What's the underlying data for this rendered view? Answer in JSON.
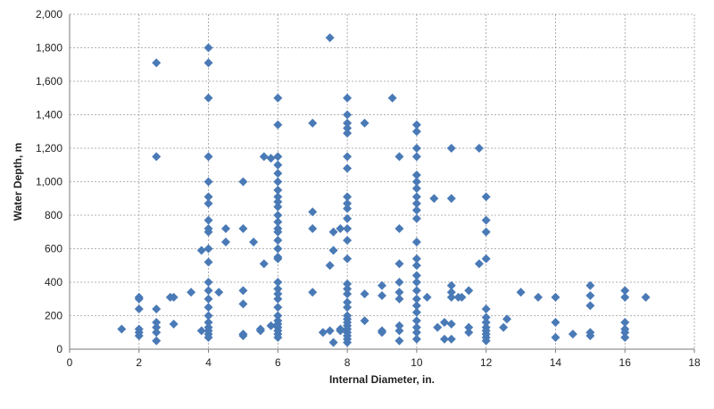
{
  "chart_data": {
    "type": "scatter",
    "title": "",
    "xlabel": "Internal Diameter, in.",
    "ylabel": "Water Depth, m",
    "xlim": [
      0,
      18
    ],
    "ylim": [
      0,
      2000
    ],
    "xticks": [
      0,
      2,
      4,
      6,
      8,
      10,
      12,
      14,
      16,
      18
    ],
    "yticks": [
      0,
      200,
      400,
      600,
      800,
      1000,
      1200,
      1400,
      1600,
      1800,
      2000
    ],
    "xtick_labels": [
      "0",
      "2",
      "4",
      "6",
      "8",
      "10",
      "12",
      "14",
      "16",
      "18"
    ],
    "ytick_labels": [
      "0",
      "200",
      "400",
      "600",
      "800",
      "1,000",
      "1,200",
      "1,400",
      "1,600",
      "1,800",
      "2,000"
    ],
    "grid": true,
    "legend": "none",
    "marker": "diamond",
    "marker_color": "#4a7ab6",
    "series": [
      {
        "points": [
          [
            1.5,
            120
          ],
          [
            2,
            310
          ],
          [
            2,
            300
          ],
          [
            2,
            240
          ],
          [
            2,
            120
          ],
          [
            2,
            100
          ],
          [
            2,
            80
          ],
          [
            2.5,
            1710
          ],
          [
            2.5,
            1150
          ],
          [
            2.5,
            240
          ],
          [
            2.5,
            160
          ],
          [
            2.5,
            130
          ],
          [
            2.5,
            100
          ],
          [
            2.5,
            50
          ],
          [
            2.9,
            310
          ],
          [
            3,
            310
          ],
          [
            3,
            150
          ],
          [
            3.5,
            340
          ],
          [
            3.8,
            590
          ],
          [
            3.8,
            110
          ],
          [
            4,
            1800
          ],
          [
            4,
            1710
          ],
          [
            4,
            1500
          ],
          [
            4,
            1150
          ],
          [
            4,
            1000
          ],
          [
            4,
            910
          ],
          [
            4,
            870
          ],
          [
            4,
            770
          ],
          [
            4,
            720
          ],
          [
            4,
            700
          ],
          [
            4,
            600
          ],
          [
            4,
            520
          ],
          [
            4,
            400
          ],
          [
            4,
            350
          ],
          [
            4,
            300
          ],
          [
            4,
            250
          ],
          [
            4,
            200
          ],
          [
            4,
            160
          ],
          [
            4,
            130
          ],
          [
            4,
            110
          ],
          [
            4,
            90
          ],
          [
            4,
            70
          ],
          [
            4.3,
            340
          ],
          [
            4.5,
            720
          ],
          [
            4.5,
            640
          ],
          [
            5,
            1000
          ],
          [
            5,
            720
          ],
          [
            5,
            350
          ],
          [
            5,
            270
          ],
          [
            5,
            90
          ],
          [
            5,
            80
          ],
          [
            5.3,
            640
          ],
          [
            5.5,
            110
          ],
          [
            5.5,
            120
          ],
          [
            5.6,
            1150
          ],
          [
            5.6,
            510
          ],
          [
            5.8,
            1140
          ],
          [
            5.8,
            140
          ],
          [
            6,
            1500
          ],
          [
            6,
            1340
          ],
          [
            6,
            1150
          ],
          [
            6,
            1100
          ],
          [
            6,
            1050
          ],
          [
            6,
            1000
          ],
          [
            6,
            950
          ],
          [
            6,
            910
          ],
          [
            6,
            880
          ],
          [
            6,
            850
          ],
          [
            6,
            800
          ],
          [
            6,
            760
          ],
          [
            6,
            720
          ],
          [
            6,
            700
          ],
          [
            6,
            650
          ],
          [
            6,
            600
          ],
          [
            6,
            550
          ],
          [
            6,
            540
          ],
          [
            6,
            400
          ],
          [
            6,
            360
          ],
          [
            6,
            330
          ],
          [
            6,
            300
          ],
          [
            6,
            250
          ],
          [
            6,
            200
          ],
          [
            6,
            170
          ],
          [
            6,
            150
          ],
          [
            6,
            130
          ],
          [
            6,
            110
          ],
          [
            6,
            90
          ],
          [
            6,
            70
          ],
          [
            7,
            1350
          ],
          [
            7,
            820
          ],
          [
            7,
            720
          ],
          [
            7,
            340
          ],
          [
            7.3,
            100
          ],
          [
            7.5,
            1860
          ],
          [
            7.5,
            500
          ],
          [
            7.5,
            110
          ],
          [
            7.6,
            700
          ],
          [
            7.6,
            590
          ],
          [
            7.6,
            40
          ],
          [
            7.8,
            720
          ],
          [
            7.8,
            110
          ],
          [
            7.8,
            120
          ],
          [
            8,
            1500
          ],
          [
            8,
            1400
          ],
          [
            8,
            1350
          ],
          [
            8,
            1320
          ],
          [
            8,
            1290
          ],
          [
            8,
            1150
          ],
          [
            8,
            1080
          ],
          [
            8,
            910
          ],
          [
            8,
            870
          ],
          [
            8,
            840
          ],
          [
            8,
            780
          ],
          [
            8,
            720
          ],
          [
            8,
            650
          ],
          [
            8,
            540
          ],
          [
            8,
            390
          ],
          [
            8,
            360
          ],
          [
            8,
            330
          ],
          [
            8,
            280
          ],
          [
            8,
            250
          ],
          [
            8,
            200
          ],
          [
            8,
            180
          ],
          [
            8,
            160
          ],
          [
            8,
            140
          ],
          [
            8,
            120
          ],
          [
            8,
            100
          ],
          [
            8,
            80
          ],
          [
            8,
            60
          ],
          [
            8,
            40
          ],
          [
            8.5,
            1350
          ],
          [
            8.5,
            330
          ],
          [
            8.5,
            170
          ],
          [
            9,
            380
          ],
          [
            9,
            320
          ],
          [
            9,
            110
          ],
          [
            9,
            100
          ],
          [
            9.3,
            1500
          ],
          [
            9.5,
            1150
          ],
          [
            9.5,
            720
          ],
          [
            9.5,
            510
          ],
          [
            9.5,
            400
          ],
          [
            9.5,
            340
          ],
          [
            9.5,
            300
          ],
          [
            9.5,
            140
          ],
          [
            9.5,
            110
          ],
          [
            9.5,
            50
          ],
          [
            10,
            1340
          ],
          [
            10,
            1300
          ],
          [
            10,
            1200
          ],
          [
            10,
            1150
          ],
          [
            10,
            1040
          ],
          [
            10,
            1000
          ],
          [
            10,
            960
          ],
          [
            10,
            910
          ],
          [
            10,
            870
          ],
          [
            10,
            830
          ],
          [
            10,
            780
          ],
          [
            10,
            640
          ],
          [
            10,
            540
          ],
          [
            10,
            500
          ],
          [
            10,
            440
          ],
          [
            10,
            400
          ],
          [
            10,
            350
          ],
          [
            10,
            300
          ],
          [
            10,
            260
          ],
          [
            10,
            220
          ],
          [
            10,
            170
          ],
          [
            10,
            130
          ],
          [
            10,
            100
          ],
          [
            10,
            60
          ],
          [
            10.3,
            310
          ],
          [
            10.5,
            900
          ],
          [
            10.6,
            130
          ],
          [
            10.8,
            160
          ],
          [
            10.8,
            60
          ],
          [
            11,
            1200
          ],
          [
            11,
            900
          ],
          [
            11,
            380
          ],
          [
            11,
            340
          ],
          [
            11,
            310
          ],
          [
            11,
            150
          ],
          [
            11,
            60
          ],
          [
            11.2,
            310
          ],
          [
            11.3,
            310
          ],
          [
            11.5,
            350
          ],
          [
            11.5,
            130
          ],
          [
            11.5,
            100
          ],
          [
            11.8,
            1200
          ],
          [
            11.8,
            510
          ],
          [
            12,
            910
          ],
          [
            12,
            770
          ],
          [
            12,
            700
          ],
          [
            12,
            540
          ],
          [
            12,
            240
          ],
          [
            12,
            190
          ],
          [
            12,
            160
          ],
          [
            12,
            130
          ],
          [
            12,
            110
          ],
          [
            12,
            90
          ],
          [
            12,
            70
          ],
          [
            12,
            50
          ],
          [
            12.5,
            130
          ],
          [
            12.6,
            180
          ],
          [
            13,
            340
          ],
          [
            13.5,
            310
          ],
          [
            14,
            310
          ],
          [
            14,
            160
          ],
          [
            14,
            70
          ],
          [
            14.5,
            90
          ],
          [
            15,
            380
          ],
          [
            15,
            320
          ],
          [
            15,
            260
          ],
          [
            15,
            100
          ],
          [
            15,
            80
          ],
          [
            16,
            350
          ],
          [
            16,
            310
          ],
          [
            16,
            160
          ],
          [
            16,
            120
          ],
          [
            16,
            100
          ],
          [
            16,
            70
          ],
          [
            16.6,
            310
          ]
        ]
      }
    ]
  }
}
